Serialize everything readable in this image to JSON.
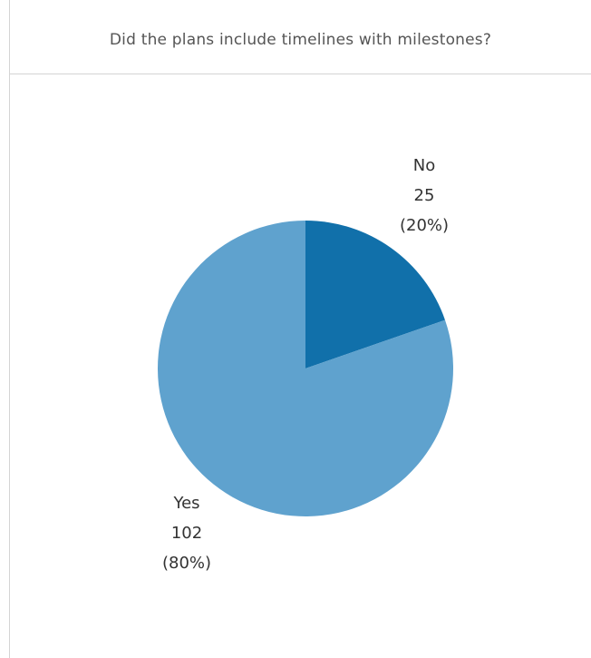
{
  "chart_data": {
    "type": "pie",
    "title": "Did the plans include timelines with milestones?",
    "categories": [
      "No",
      "Yes"
    ],
    "values": [
      25,
      102
    ],
    "value_labels": [
      "25",
      "102"
    ],
    "percent_labels": [
      "(20%)",
      "(80%)"
    ],
    "colors": [
      "#1170aa",
      "#5fa2ce"
    ],
    "start_angle_deg": 0,
    "direction": "clockwise"
  }
}
